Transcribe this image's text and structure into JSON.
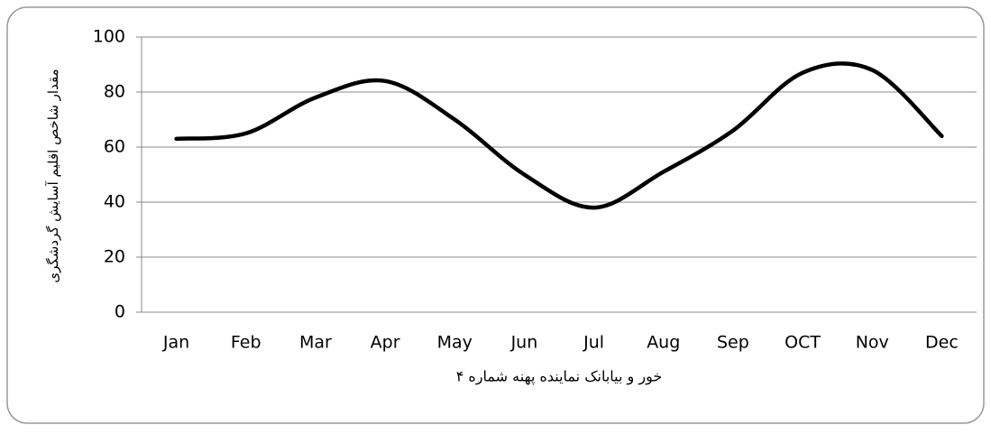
{
  "chart_data": {
    "type": "line",
    "x_label": "خور و بیابانک نماینده پهنه شماره ۴",
    "y_label": "مقدار شاخص اقلیم آسایش گردشگری",
    "categories": [
      "Jan",
      "Feb",
      "Mar",
      "Apr",
      "May",
      "Jun",
      "Jul",
      "Aug",
      "Sep",
      "OCT",
      "Nov",
      "Dec"
    ],
    "values": [
      63,
      65,
      78,
      84,
      70,
      50,
      38,
      51,
      66,
      87,
      88,
      64
    ],
    "color": "#000000",
    "smooth": true,
    "ylim": [
      0,
      100
    ],
    "yticks": [
      0,
      20,
      40,
      60,
      80,
      100
    ],
    "grid": true
  }
}
